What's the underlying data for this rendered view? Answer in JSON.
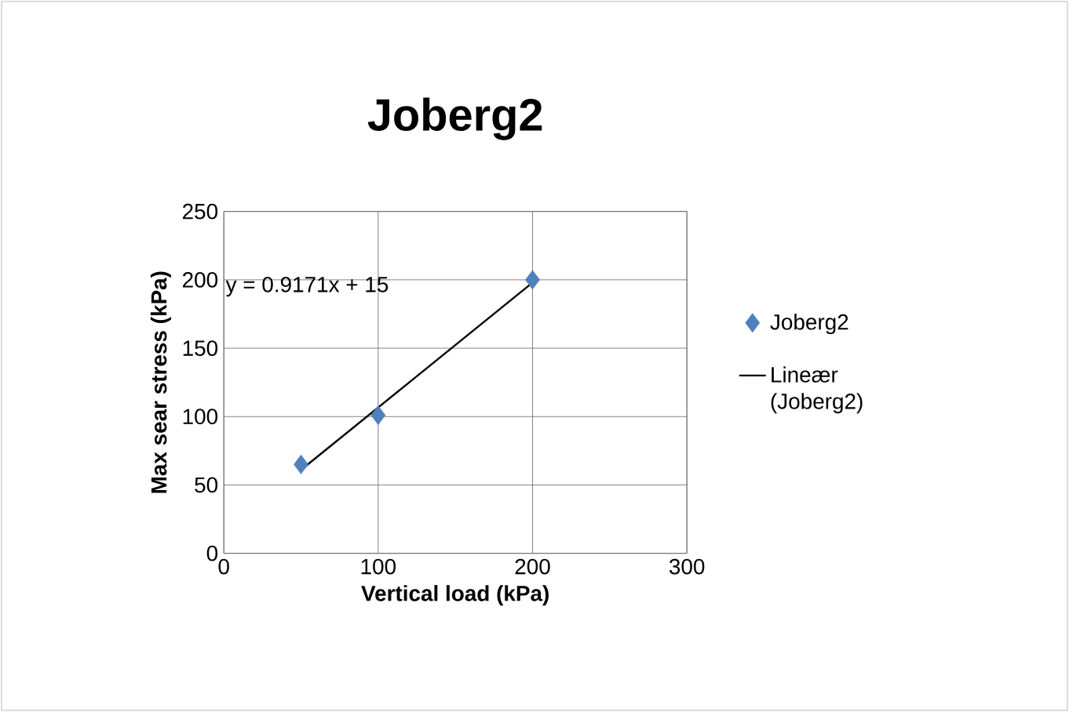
{
  "chart_data": {
    "type": "scatter",
    "title": "Joberg2",
    "xlabel": "Vertical load (kPa)",
    "ylabel": "Max sear stress (kPa)",
    "xlim": [
      0,
      300
    ],
    "xticks": [
      0,
      100,
      200,
      300
    ],
    "ylim": [
      0,
      250
    ],
    "yticks": [
      0,
      50,
      100,
      150,
      200,
      250
    ],
    "grid": true,
    "legend": "right",
    "annotations": [
      "y = 0.9171x + 15"
    ],
    "series": [
      {
        "name": "Joberg2",
        "type": "scatter",
        "marker": "diamond",
        "color": "#4f81bd",
        "x": [
          50,
          100,
          200
        ],
        "values": [
          65,
          101,
          200
        ]
      },
      {
        "name": "Lineær (Joberg2)",
        "type": "line",
        "marker": "none",
        "line_style": "solid",
        "color": "#000000",
        "x": [
          50,
          200
        ],
        "values": [
          61,
          198
        ]
      }
    ]
  }
}
